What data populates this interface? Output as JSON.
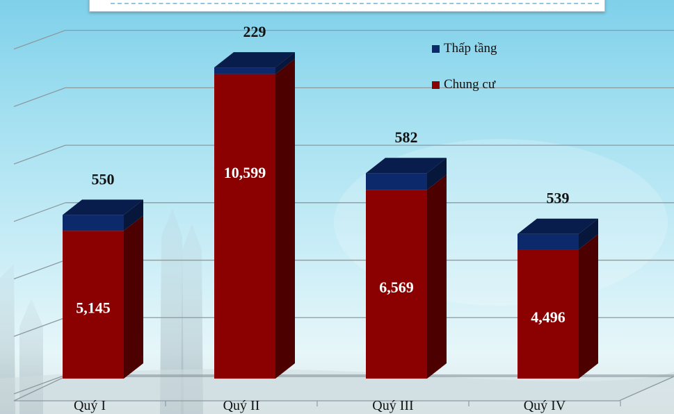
{
  "chart_data": {
    "type": "bar",
    "stacked": true,
    "three_d": true,
    "categories": [
      "Quý I",
      "Quý II",
      "Quý III",
      "Quý IV"
    ],
    "series": [
      {
        "name": "Chung cư",
        "values": [
          5145,
          10599,
          6569,
          4496
        ],
        "labels": [
          "5,145",
          "10,599",
          "6,569",
          "4,496"
        ],
        "color": "#8b0000"
      },
      {
        "name": "Thấp tầng",
        "values": [
          550,
          229,
          582,
          539
        ],
        "labels": [
          "550",
          "229",
          "582",
          "539"
        ],
        "color": "#0c2a6b"
      }
    ],
    "title": "",
    "xlabel": "",
    "ylabel": "",
    "ylim": [
      0,
      12000
    ],
    "grid": true,
    "legend_position": "top-right"
  }
}
